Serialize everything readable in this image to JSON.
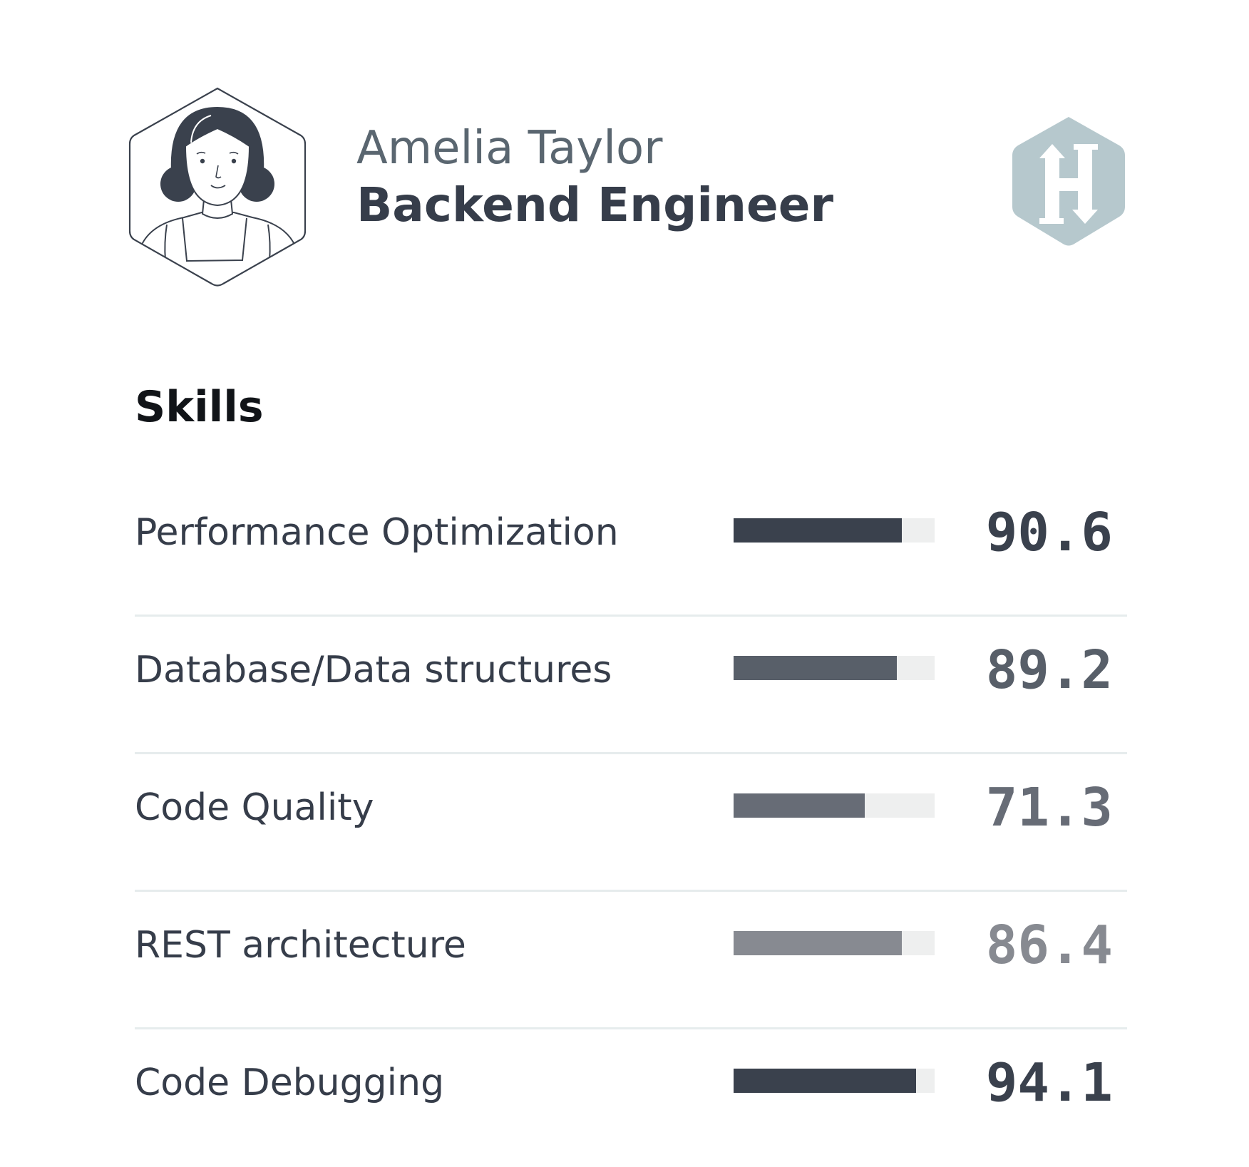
{
  "profile": {
    "name": "Amelia Taylor",
    "role": "Backend Engineer",
    "avatar_icon": "woman-portrait-icon",
    "brand_icon": "hackerrank-logo-icon",
    "brand_color": "#b6c8cd"
  },
  "skills": {
    "heading": "Skills",
    "items": [
      {
        "label": "Performance Optimization",
        "score": "90.6",
        "level": 0.837,
        "color": "#3a414d"
      },
      {
        "label": "Database/Data structures",
        "score": "89.2",
        "level": 0.812,
        "color": "#585f69"
      },
      {
        "label": "Code Quality",
        "score": "71.3",
        "level": 0.652,
        "color": "#676c76"
      },
      {
        "label": "REST architecture",
        "score": "86.4",
        "level": 0.837,
        "color": "#878a91"
      },
      {
        "label": "Code Debugging",
        "score": "94.1",
        "level": 0.908,
        "color": "#3a414d"
      }
    ]
  }
}
